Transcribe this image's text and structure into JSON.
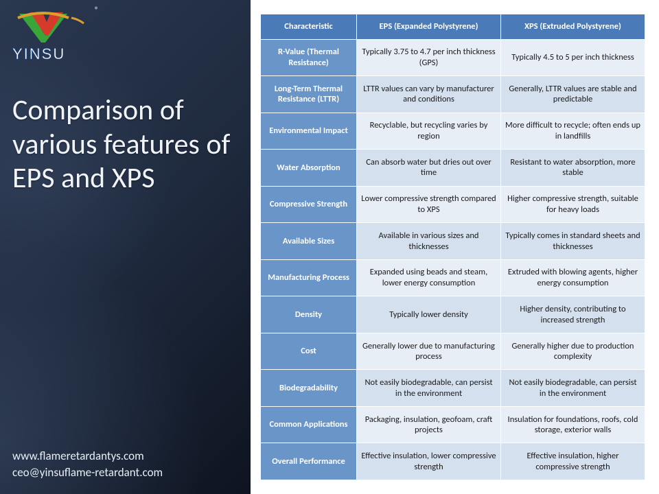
{
  "brand": {
    "name": "YINSU",
    "watermark": "YINSU",
    "registered": "®"
  },
  "title": "Comparison of various features of EPS and XPS",
  "contact": {
    "website": "www.flameretardantys.com",
    "email": "ceo@yinsuflame-retardant.com"
  },
  "table": {
    "type": "table",
    "header_bg": "#4a7ab8",
    "rowhead_bg": "#6a95c8",
    "row_odd_bg": "#e8eef6",
    "row_even_bg": "#d4e0ee",
    "text_color": "#1a1a1a",
    "border_color": "#ffffff",
    "columns": [
      "Characteristic",
      "EPS (Expanded Polystyrene)",
      "XPS (Extruded Polystyrene)"
    ],
    "rows": [
      {
        "label": "R-Value (Thermal Resistance)",
        "eps": "Typically 3.75 to 4.7 per inch thickness (GPS)",
        "xps": "Typically 4.5 to 5 per inch thickness"
      },
      {
        "label": "Long-Term Thermal Resistance (LTTR)",
        "eps": "LTTR values can vary by manufacturer and conditions",
        "xps": "Generally, LTTR values are stable and predictable"
      },
      {
        "label": "Environmental Impact",
        "eps": "Recyclable, but recycling varies by region",
        "xps": "More difficult to recycle; often ends up in landfills"
      },
      {
        "label": "Water Absorption",
        "eps": "Can absorb water but dries out over time",
        "xps": "Resistant to water absorption, more stable"
      },
      {
        "label": "Compressive Strength",
        "eps": "Lower compressive strength compared to XPS",
        "xps": "Higher compressive strength, suitable for heavy loads"
      },
      {
        "label": "Available Sizes",
        "eps": "Available in various sizes and thicknesses",
        "xps": "Typically comes in standard sheets and thicknesses"
      },
      {
        "label": "Manufacturing Process",
        "eps": "Expanded using beads and steam, lower energy consumption",
        "xps": "Extruded with blowing agents, higher energy consumption"
      },
      {
        "label": "Density",
        "eps": "Typically lower density",
        "xps": "Higher density, contributing to increased strength"
      },
      {
        "label": "Cost",
        "eps": "Generally lower due to manufacturing process",
        "xps": "Generally higher due to production complexity"
      },
      {
        "label": "Biodegradability",
        "eps": "Not easily biodegradable, can persist in the environment",
        "xps": "Not easily biodegradable, can persist in the environment"
      },
      {
        "label": "Common Applications",
        "eps": "Packaging, insulation, geofoam, craft projects",
        "xps": "Insulation for foundations, roofs, cold storage, exterior walls"
      },
      {
        "label": "Overall Performance",
        "eps": "Effective insulation, lower compressive strength",
        "xps": "Effective insulation, higher compressive strength"
      }
    ]
  },
  "logo_colors": {
    "green": "#3aa63a",
    "red": "#d63a2a",
    "gold": "#d8a030",
    "text_stroke": "#2d5a9e"
  }
}
